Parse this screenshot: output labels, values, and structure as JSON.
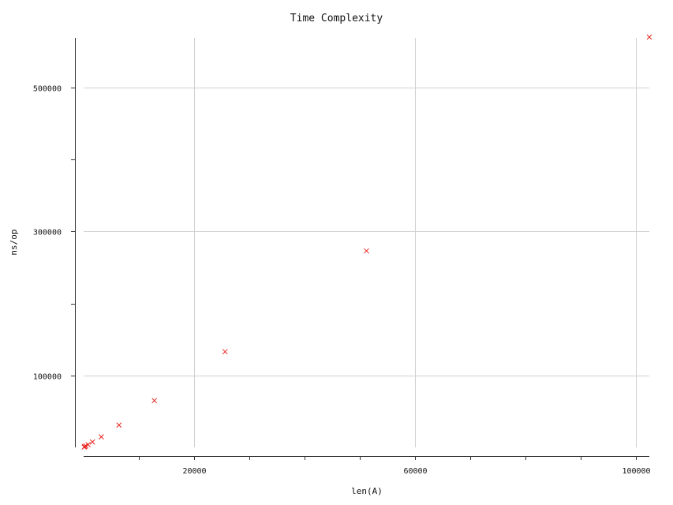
{
  "chart_data": {
    "type": "scatter",
    "title": "Time Complexity",
    "xlabel": "len(A)",
    "ylabel": "ns/op",
    "xlim": [
      0,
      102400
    ],
    "ylim": [
      0,
      570000
    ],
    "x_ticks": [
      {
        "value": 20000,
        "label": "20000"
      },
      {
        "value": 60000,
        "label": "60000"
      },
      {
        "value": 100000,
        "label": "100000"
      }
    ],
    "x_minor_ticks": [
      10000,
      30000,
      40000,
      50000,
      70000,
      80000,
      90000
    ],
    "y_ticks": [
      {
        "value": 100000,
        "label": "100000"
      },
      {
        "value": 300000,
        "label": "300000"
      },
      {
        "value": 500000,
        "label": "500000"
      }
    ],
    "y_minor_ticks": [
      200000,
      400000
    ],
    "grid": true,
    "marker_color": "#e8231e",
    "series": [
      {
        "x": [
          100,
          200,
          400,
          800,
          1600,
          3200,
          6400,
          12800,
          25600,
          51200,
          102400
        ],
        "y": [
          500,
          1100,
          2000,
          3800,
          7500,
          14700,
          31000,
          65000,
          133000,
          273000,
          570000
        ]
      }
    ]
  }
}
